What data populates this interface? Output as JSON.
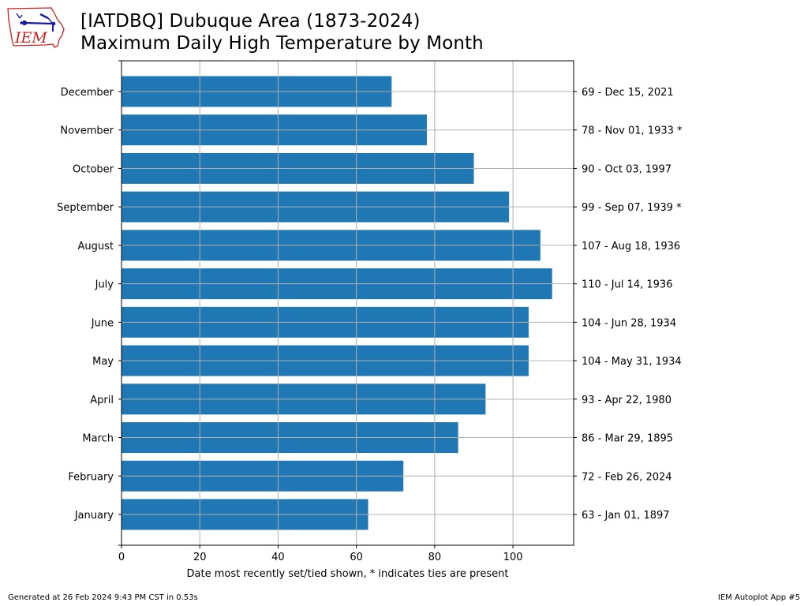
{
  "header": {
    "logo_text": "IEM",
    "title_line1": "[IATDBQ] Dubuque Area (1873-2024)",
    "title_line2": "Maximum Daily High Temperature by Month"
  },
  "footer": {
    "left": "Generated at 26 Feb 2024 9:43 PM CST in 0.53s",
    "right": "IEM Autoplot App #5"
  },
  "colors": {
    "bar": "#1f77b4",
    "grid": "#b0b0b0",
    "logo_red": "#cc2222",
    "logo_blue": "#1a1aa6"
  },
  "chart_data": {
    "type": "bar",
    "orientation": "horizontal",
    "title": "[IATDBQ] Dubuque Area (1873-2024) Maximum Daily High Temperature by Month",
    "xlabel": "Date most recently set/tied shown, * indicates ties are present",
    "ylabel": "",
    "xlim": [
      0,
      115.5
    ],
    "xticks": [
      0,
      20,
      40,
      60,
      80,
      100
    ],
    "grid": true,
    "categories": [
      "January",
      "February",
      "March",
      "April",
      "May",
      "June",
      "July",
      "August",
      "September",
      "October",
      "November",
      "December"
    ],
    "values": [
      63,
      72,
      86,
      93,
      104,
      104,
      110,
      107,
      99,
      90,
      78,
      69
    ],
    "right_labels": [
      "63 - Jan 01, 1897",
      "72 - Feb 26, 2024",
      "86 - Mar 29, 1895",
      "93 - Apr 22, 1980",
      "104 - May 31, 1934",
      "104 - Jun 28, 1934",
      "110 - Jul 14, 1936",
      "107 - Aug 18, 1936",
      "99 - Sep 07, 1939 *",
      "90 - Oct 03, 1997",
      "78 - Nov 01, 1933 *",
      "69 - Dec 15, 2021"
    ]
  }
}
